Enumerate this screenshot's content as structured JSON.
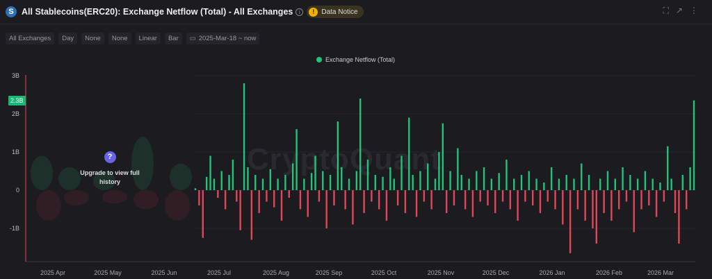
{
  "header": {
    "logo_letter": "S",
    "title": "All Stablecoins(ERC20): Exchange Netflow (Total) - All Exchanges",
    "info": "i",
    "notice": "Data Notice",
    "notice_icon": "!"
  },
  "toolbar": {
    "items": [
      "All Exchanges",
      "Day",
      "None",
      "None",
      "Linear",
      "Bar"
    ],
    "date_range": "2025-Mar-18 ~ now"
  },
  "watermark": "CryptoQuant",
  "upgrade": {
    "icon": "?",
    "text": "Upgrade to view full history"
  },
  "colors": {
    "positive": "#22c37a",
    "negative": "#e0485a",
    "bg": "#1c1b20"
  },
  "chart_data": {
    "type": "bar",
    "legend": [
      "Exchange Netflow (Total)"
    ],
    "ylabel": "",
    "ylim": [
      -2,
      3
    ],
    "y_ticks": [
      "3B",
      "2B",
      "1B",
      "0",
      "-1B"
    ],
    "current_value_label": "2.3B",
    "x_ticks": [
      "2025 Apr",
      "2025 May",
      "2025 Jun",
      "2025 Jul",
      "2025 Aug",
      "2025 Sep",
      "2025 Oct",
      "2025 Nov",
      "2025 Dec",
      "2026 Jan",
      "2026 Feb",
      "2026 Mar"
    ],
    "unit": "B",
    "values": [
      0.05,
      -0.4,
      -1.25,
      0.35,
      0.9,
      0.3,
      -0.2,
      0.5,
      -0.5,
      0.4,
      0.8,
      -0.3,
      -1.05,
      2.8,
      0.6,
      -1.3,
      0.4,
      -0.6,
      0.3,
      -0.3,
      0.55,
      -0.45,
      0.3,
      -0.8,
      0.4,
      -0.2,
      0.7,
      1.6,
      -0.5,
      0.3,
      -0.7,
      0.45,
      0.9,
      -0.3,
      0.5,
      -1.0,
      0.4,
      -0.4,
      1.8,
      0.6,
      -0.5,
      0.3,
      -0.9,
      0.5,
      2.4,
      -0.6,
      0.8,
      -0.3,
      0.4,
      -0.5,
      0.35,
      -0.8,
      0.6,
      0.3,
      -0.4,
      0.9,
      -0.6,
      1.9,
      0.4,
      -0.7,
      0.5,
      -0.3,
      0.7,
      -0.5,
      0.3,
      1.0,
      1.75,
      -0.6,
      0.5,
      -0.4,
      1.1,
      0.4,
      -0.5,
      0.3,
      -0.7,
      0.5,
      -0.3,
      0.6,
      -0.4,
      0.3,
      -0.6,
      0.45,
      -0.3,
      0.8,
      -0.5,
      0.3,
      -0.8,
      0.4,
      -0.3,
      0.5,
      -0.4,
      0.3,
      -0.6,
      0.2,
      -0.3,
      0.6,
      -0.5,
      0.3,
      -0.9,
      0.4,
      -1.65,
      0.3,
      -0.5,
      0.7,
      -0.8,
      0.4,
      -1.0,
      -1.4,
      0.3,
      -0.6,
      0.5,
      -0.8,
      0.3,
      -0.5,
      0.6,
      -0.3,
      0.4,
      -1.1,
      0.3,
      -0.5,
      0.5,
      -0.4,
      0.3,
      -0.7,
      0.2,
      -0.3,
      1.15,
      0.3,
      -0.6,
      -1.4,
      0.4,
      -0.5,
      0.6,
      2.35
    ]
  }
}
